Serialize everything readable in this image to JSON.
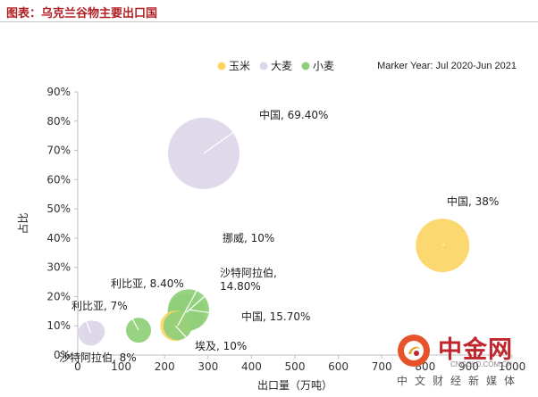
{
  "header": {
    "title": "图表：乌克兰谷物主要出口国"
  },
  "legend": {
    "items": [
      {
        "label": "玉米",
        "color": "#fcd565"
      },
      {
        "label": "大麦",
        "color": "#ddd6e8"
      },
      {
        "label": "小麦",
        "color": "#8fcf7a"
      }
    ]
  },
  "note": "Marker Year: Jul 2020-Jun 2021",
  "chart_data": {
    "type": "bubble",
    "xlabel": "出口量（万吨）",
    "ylabel": "占比",
    "xlim": [
      0,
      1000
    ],
    "ylim": [
      0,
      0.9
    ],
    "x_ticks": [
      0,
      100,
      200,
      300,
      400,
      500,
      600,
      700,
      800,
      900,
      1000
    ],
    "y_ticks": [
      "0%",
      "10%",
      "20%",
      "30%",
      "40%",
      "50%",
      "60%",
      "70%",
      "80%",
      "90%"
    ],
    "series": [
      {
        "name": "玉米",
        "color": "#fcd565",
        "points": [
          {
            "label": "中国, 38%",
            "x": 840,
            "y": 0.375,
            "size": 30
          },
          {
            "label": "埃及, 10%",
            "x": 225,
            "y": 0.1,
            "size": 17
          }
        ]
      },
      {
        "name": "大麦",
        "color": "#ddd6e8",
        "points": [
          {
            "label": "中国, 69.40%",
            "x": 290,
            "y": 0.69,
            "size": 40
          },
          {
            "label": "利比亚, 7%",
            "x": 30,
            "y": 0.075,
            "size": 14
          },
          {
            "label": "沙特阿拉伯, 8%",
            "x": 38,
            "y": 0.08,
            "size": 12
          }
        ]
      },
      {
        "name": "小麦",
        "color": "#8fcf7a",
        "points": [
          {
            "label": "中国, 15.70%",
            "x": 255,
            "y": 0.155,
            "size": 23
          },
          {
            "label": "沙特阿拉伯,\n14.80%",
            "x": 250,
            "y": 0.145,
            "size": 21
          },
          {
            "label": "利比亚, 8.40%",
            "x": 140,
            "y": 0.085,
            "size": 14
          },
          {
            "label": "挪威, 10%",
            "x": 230,
            "y": 0.1,
            "size": 16
          }
        ]
      }
    ]
  },
  "watermark": {
    "brand": "中金网",
    "url": "CNGOLD.COM.CN",
    "slogan": "中文财经新媒体"
  }
}
